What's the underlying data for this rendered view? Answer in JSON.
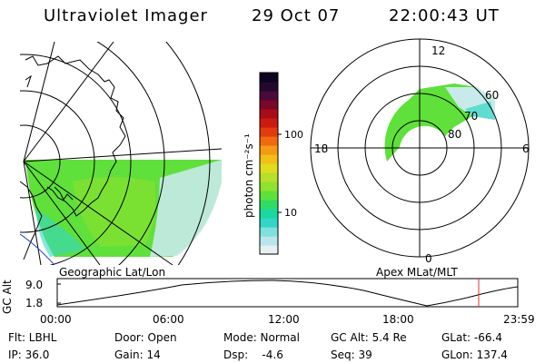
{
  "header": {
    "title": "Ultraviolet Imager",
    "date": "29 Oct 07",
    "time": "22:00:43 UT"
  },
  "left_map": {
    "caption": "Geographic Lat/Lon"
  },
  "polar_plot": {
    "caption": "Apex MLat/MLT",
    "mlt_labels": [
      "12",
      "18",
      "6",
      "0"
    ],
    "lat_labels": [
      "60",
      "70",
      "80"
    ]
  },
  "colorbar": {
    "unit_label": "photon cm⁻²s⁻¹",
    "tick_labels": [
      "100",
      "10"
    ],
    "colors": [
      "#e6f0f0",
      "#b8e6ea",
      "#7fe0dc",
      "#33d6c6",
      "#19d9a0",
      "#2fdc66",
      "#5fe03a",
      "#8fe22e",
      "#b8e02a",
      "#e0dc1e",
      "#f0c018",
      "#f59a12",
      "#f06a10",
      "#e03c10",
      "#cc1a10",
      "#a80c18",
      "#7a0828",
      "#4a0a3a",
      "#24082e",
      "#0c0420"
    ]
  },
  "altitude_plot": {
    "y_label": "GC Alt",
    "y_ticks": [
      "9.0",
      "1.8"
    ],
    "x_ticks": [
      "00:00",
      "06:00",
      "12:00",
      "18:00",
      "23:59"
    ]
  },
  "info": {
    "filter": "Flt: LBHL",
    "ip": "IP: 36.0",
    "door": "Door: Open",
    "gain": "Gain: 14",
    "mode": "Mode: Normal",
    "dsp": "Dsp:    -4.6",
    "gc_alt": "GC Alt: 5.4 Re",
    "seq": "Seq: 39",
    "glat": "GLat: -66.4",
    "glon": "GLon: 137.4"
  }
}
